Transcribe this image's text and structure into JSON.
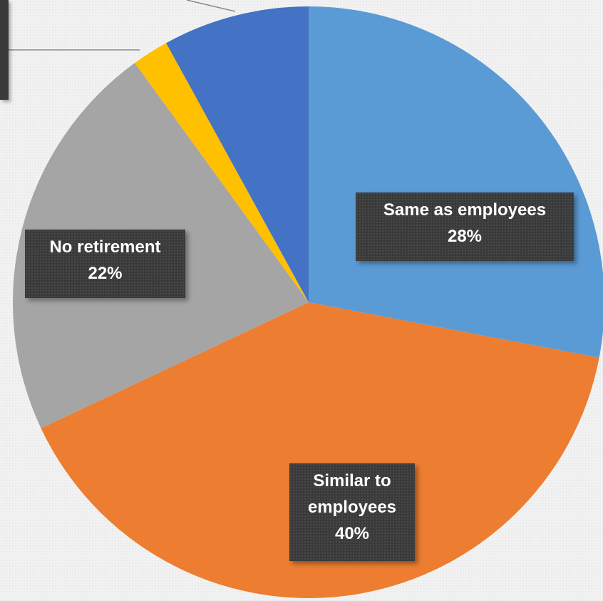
{
  "chart_data": {
    "type": "pie",
    "slices": [
      {
        "label": "Same as employees",
        "percent_label": "28%",
        "value": 28,
        "color": "#5b9bd5"
      },
      {
        "label": "Similar to employees",
        "percent_label": "40%",
        "value": 40,
        "color": "#ed7d31"
      },
      {
        "label": "No retirement",
        "percent_label": "22%",
        "value": 22,
        "color": "#a5a5a5"
      },
      {
        "label": "",
        "percent_label": "",
        "value": 2,
        "color": "#ffc000"
      },
      {
        "label": "",
        "percent_label": "",
        "value": 8,
        "color": "#4472c4"
      }
    ],
    "start_angle_deg": 0,
    "direction": "clockwise",
    "legend": "none"
  },
  "labels": {
    "same": {
      "line1": "Same as employees",
      "line2": "28%"
    },
    "similar": {
      "line1": "Similar to",
      "line2": "employees",
      "line3": "40%"
    },
    "none": {
      "line1": "No retirement",
      "line2": "22%"
    }
  }
}
